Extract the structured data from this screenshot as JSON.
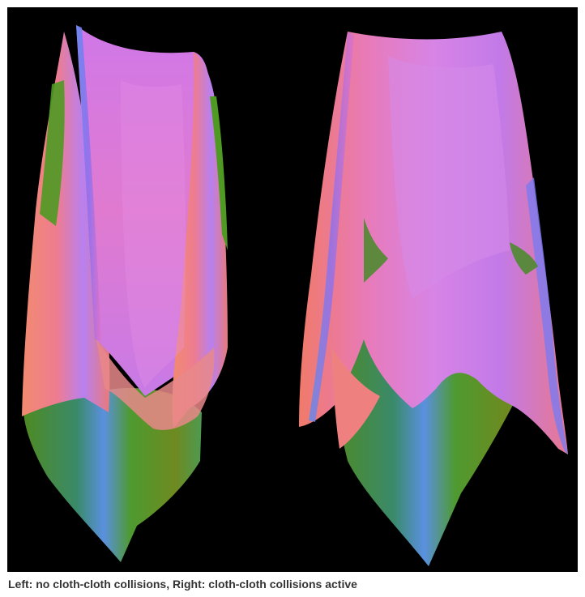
{
  "figure": {
    "caption": "Left: no cloth-cloth collisions, Right: cloth-cloth collisions active",
    "background_color": "#000000",
    "panels": [
      {
        "id": "left",
        "depicts": "cloth-drape-render"
      },
      {
        "id": "right",
        "depicts": "cloth-drape-render"
      }
    ],
    "colors": {
      "pink": "#e070c8",
      "salmon": "#f07a7a",
      "violet": "#9c6cf0",
      "blue": "#5a8cf0",
      "green": "#5a9a2a",
      "olive": "#7a8a22"
    }
  }
}
